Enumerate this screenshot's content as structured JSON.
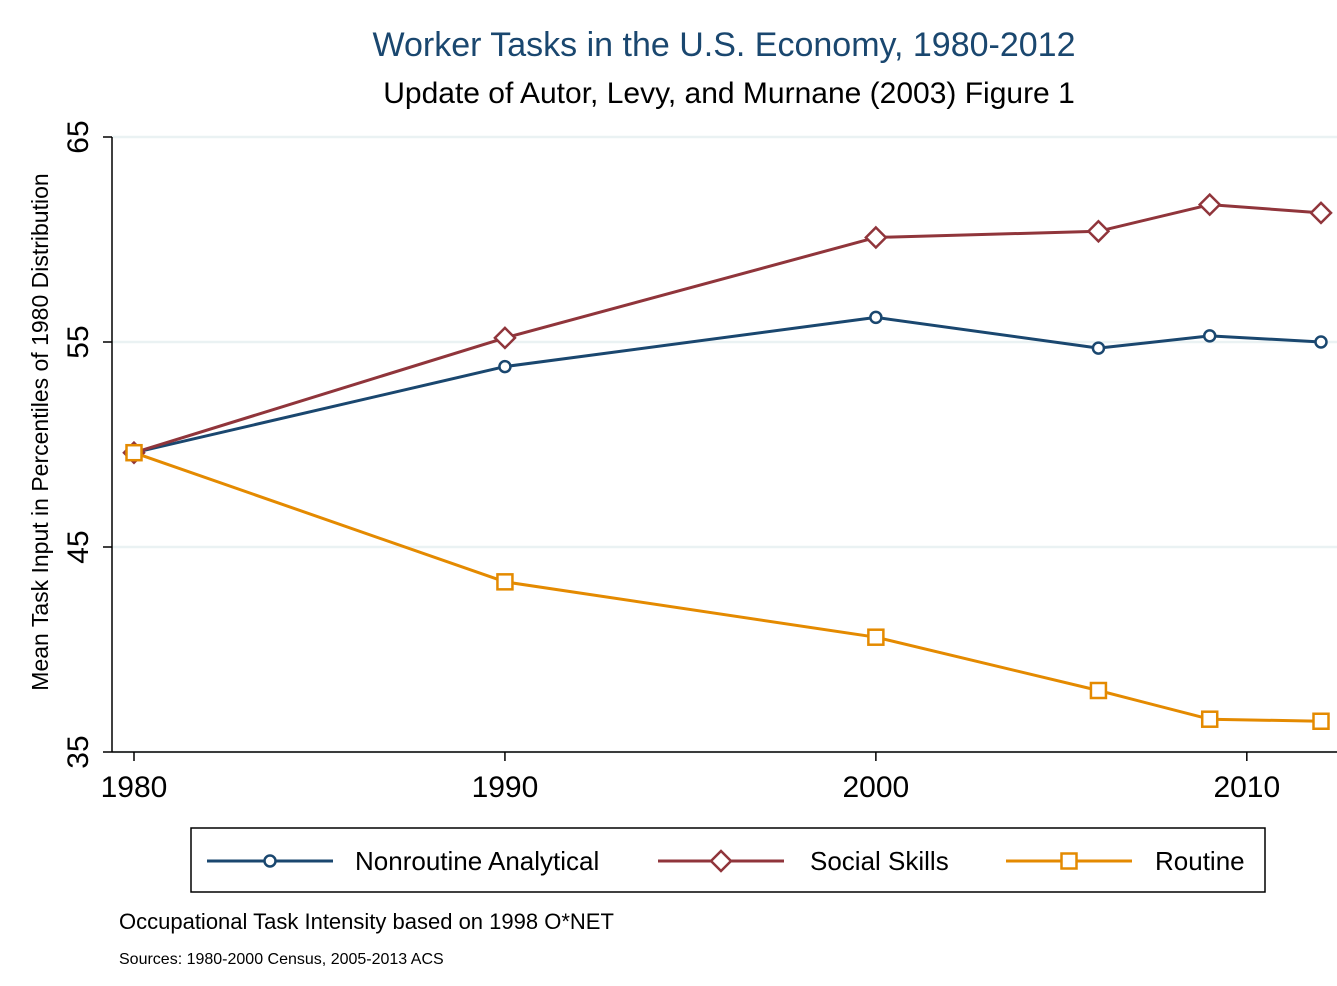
{
  "chart_data": {
    "type": "line",
    "title": "Worker Tasks in the U.S. Economy, 1980-2012",
    "subtitle": "Update of Autor, Levy, and Murnane (2003) Figure 1",
    "ylabel": "Mean Task Input in Percentiles of 1980 Distribution",
    "xlabel": "",
    "xlim": [
      1980,
      2012
    ],
    "ylim": [
      35,
      65
    ],
    "xticks": [
      1980,
      1990,
      2000,
      2010
    ],
    "yticks": [
      35,
      45,
      55,
      65
    ],
    "grid": "horizontal",
    "legend_position": "bottom",
    "series": [
      {
        "name": "Nonroutine Analytical",
        "marker": "circle",
        "color": "#1a476f",
        "x": [
          1980,
          1990,
          2000,
          2006,
          2009,
          2012
        ],
        "y": [
          49.6,
          53.8,
          56.2,
          54.7,
          55.3,
          55.0
        ]
      },
      {
        "name": "Social Skills",
        "marker": "diamond",
        "color": "#90353b",
        "x": [
          1980,
          1990,
          2000,
          2006,
          2009,
          2012
        ],
        "y": [
          49.6,
          55.2,
          60.1,
          60.4,
          61.7,
          61.3
        ]
      },
      {
        "name": "Routine",
        "marker": "square",
        "color": "#e48a00",
        "x": [
          1980,
          1990,
          2000,
          2006,
          2009,
          2012
        ],
        "y": [
          49.6,
          43.3,
          40.6,
          38.0,
          36.6,
          36.5
        ]
      }
    ],
    "notes": [
      "Occupational Task Intensity based on 1998 O*NET",
      "Sources: 1980-2000 Census, 2005-2013 ACS"
    ]
  },
  "colors": {
    "title": "#1a476f",
    "grid": "#eaf2f3",
    "axis": "#000000"
  }
}
